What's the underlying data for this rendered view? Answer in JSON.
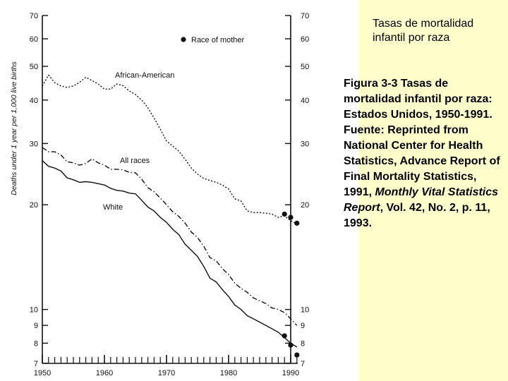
{
  "colors": {
    "panel": "#ffffcc",
    "ink": "#111111"
  },
  "slide": {
    "title": "Tasas de mortalidad infantil por raza",
    "caption": {
      "part1": "Figura 3-3 Tasas de mortalidad infantil por raza: Estados Unidos, 1950-1991. Fuente: Reprinted from National Center for Health Statistics, Advance Report of Final Mortality Statistics, 1991,",
      "italic": "Monthly Vital Statistics Report",
      "part2": ", Vol. 42, No. 2, p. 11, 1993."
    }
  },
  "chart_data": {
    "type": "line",
    "ylabel": "Deaths under 1 year per 1,000 live births",
    "xlabel": "",
    "xlim": [
      1950,
      1991
    ],
    "ylim": [
      7,
      70
    ],
    "yscale": "log",
    "x_ticks": [
      "1950",
      "1960",
      "1970",
      "1980",
      "1990"
    ],
    "y_ticks": [
      "7",
      "8",
      "9",
      "10",
      "20",
      "30",
      "40",
      "50",
      "60",
      "70"
    ],
    "legend": {
      "label": "Race of mother",
      "marker": "dot"
    },
    "series": [
      {
        "name": "African-American",
        "style": "dotted",
        "x": [
          1950,
          1951,
          1952,
          1953,
          1954,
          1955,
          1956,
          1957,
          1958,
          1959,
          1960,
          1961,
          1962,
          1963,
          1964,
          1965,
          1966,
          1967,
          1968,
          1969,
          1970,
          1971,
          1972,
          1973,
          1974,
          1975,
          1976,
          1977,
          1978,
          1979,
          1980,
          1981,
          1982,
          1983,
          1984,
          1985,
          1986,
          1987,
          1988,
          1989,
          1990,
          1991
        ],
        "values": [
          43.9,
          47.2,
          44.9,
          43.9,
          43.5,
          43.9,
          45,
          46.5,
          45.5,
          44.5,
          43.0,
          43.0,
          44.5,
          44.0,
          42.5,
          41.5,
          40.0,
          38.0,
          35.5,
          33.0,
          30.5,
          29.5,
          28.5,
          27.0,
          25.5,
          24.5,
          23.8,
          23.5,
          23.2,
          22.8,
          22.2,
          20.8,
          20.5,
          19.2,
          19.0,
          19.0,
          18.9,
          18.8,
          18.4,
          18.6,
          18.0,
          17.6
        ]
      },
      {
        "name": "All races",
        "style": "dash-dot",
        "x": [
          1950,
          1951,
          1952,
          1953,
          1954,
          1955,
          1956,
          1957,
          1958,
          1959,
          1960,
          1961,
          1962,
          1963,
          1964,
          1965,
          1966,
          1967,
          1968,
          1969,
          1970,
          1971,
          1972,
          1973,
          1974,
          1975,
          1976,
          1977,
          1978,
          1979,
          1980,
          1981,
          1982,
          1983,
          1984,
          1985,
          1986,
          1987,
          1988,
          1989,
          1990,
          1991
        ],
        "values": [
          29.2,
          28.4,
          28.4,
          27.8,
          26.6,
          26.4,
          26.0,
          26.3,
          27.1,
          26.4,
          26.0,
          25.3,
          25.3,
          25.2,
          24.8,
          24.7,
          23.7,
          22.4,
          21.8,
          20.9,
          20.0,
          19.1,
          18.5,
          17.7,
          16.7,
          16.1,
          15.2,
          14.1,
          13.8,
          13.1,
          12.6,
          11.9,
          11.5,
          11.2,
          10.8,
          10.6,
          10.4,
          10.1,
          10.0,
          9.8,
          9.4,
          9.0
        ]
      },
      {
        "name": "White",
        "style": "solid",
        "x": [
          1950,
          1951,
          1952,
          1953,
          1954,
          1955,
          1956,
          1957,
          1958,
          1959,
          1960,
          1961,
          1962,
          1963,
          1964,
          1965,
          1966,
          1967,
          1968,
          1969,
          1970,
          1971,
          1972,
          1973,
          1974,
          1975,
          1976,
          1977,
          1978,
          1979,
          1980,
          1981,
          1982,
          1983,
          1984,
          1985,
          1986,
          1987,
          1988,
          1989,
          1990,
          1991
        ],
        "values": [
          26.8,
          25.8,
          25.5,
          25.0,
          23.9,
          23.6,
          23.2,
          23.3,
          23.2,
          23.0,
          22.8,
          22.3,
          22.0,
          21.9,
          21.6,
          21.5,
          20.6,
          19.7,
          19.2,
          18.4,
          17.8,
          17.0,
          16.4,
          15.4,
          14.8,
          14.2,
          13.3,
          12.3,
          12.0,
          11.4,
          10.9,
          10.3,
          10.0,
          9.6,
          9.4,
          9.2,
          9.0,
          8.8,
          8.6,
          8.3,
          8.0,
          7.8
        ]
      }
    ],
    "race_of_mother_dots": [
      {
        "x": 1989,
        "value": 18.8
      },
      {
        "x": 1990,
        "value": 18.4
      },
      {
        "x": 1991,
        "value": 17.7
      },
      {
        "x": 1989,
        "value": 8.4
      },
      {
        "x": 1990,
        "value": 7.9
      },
      {
        "x": 1991,
        "value": 7.4
      }
    ]
  }
}
